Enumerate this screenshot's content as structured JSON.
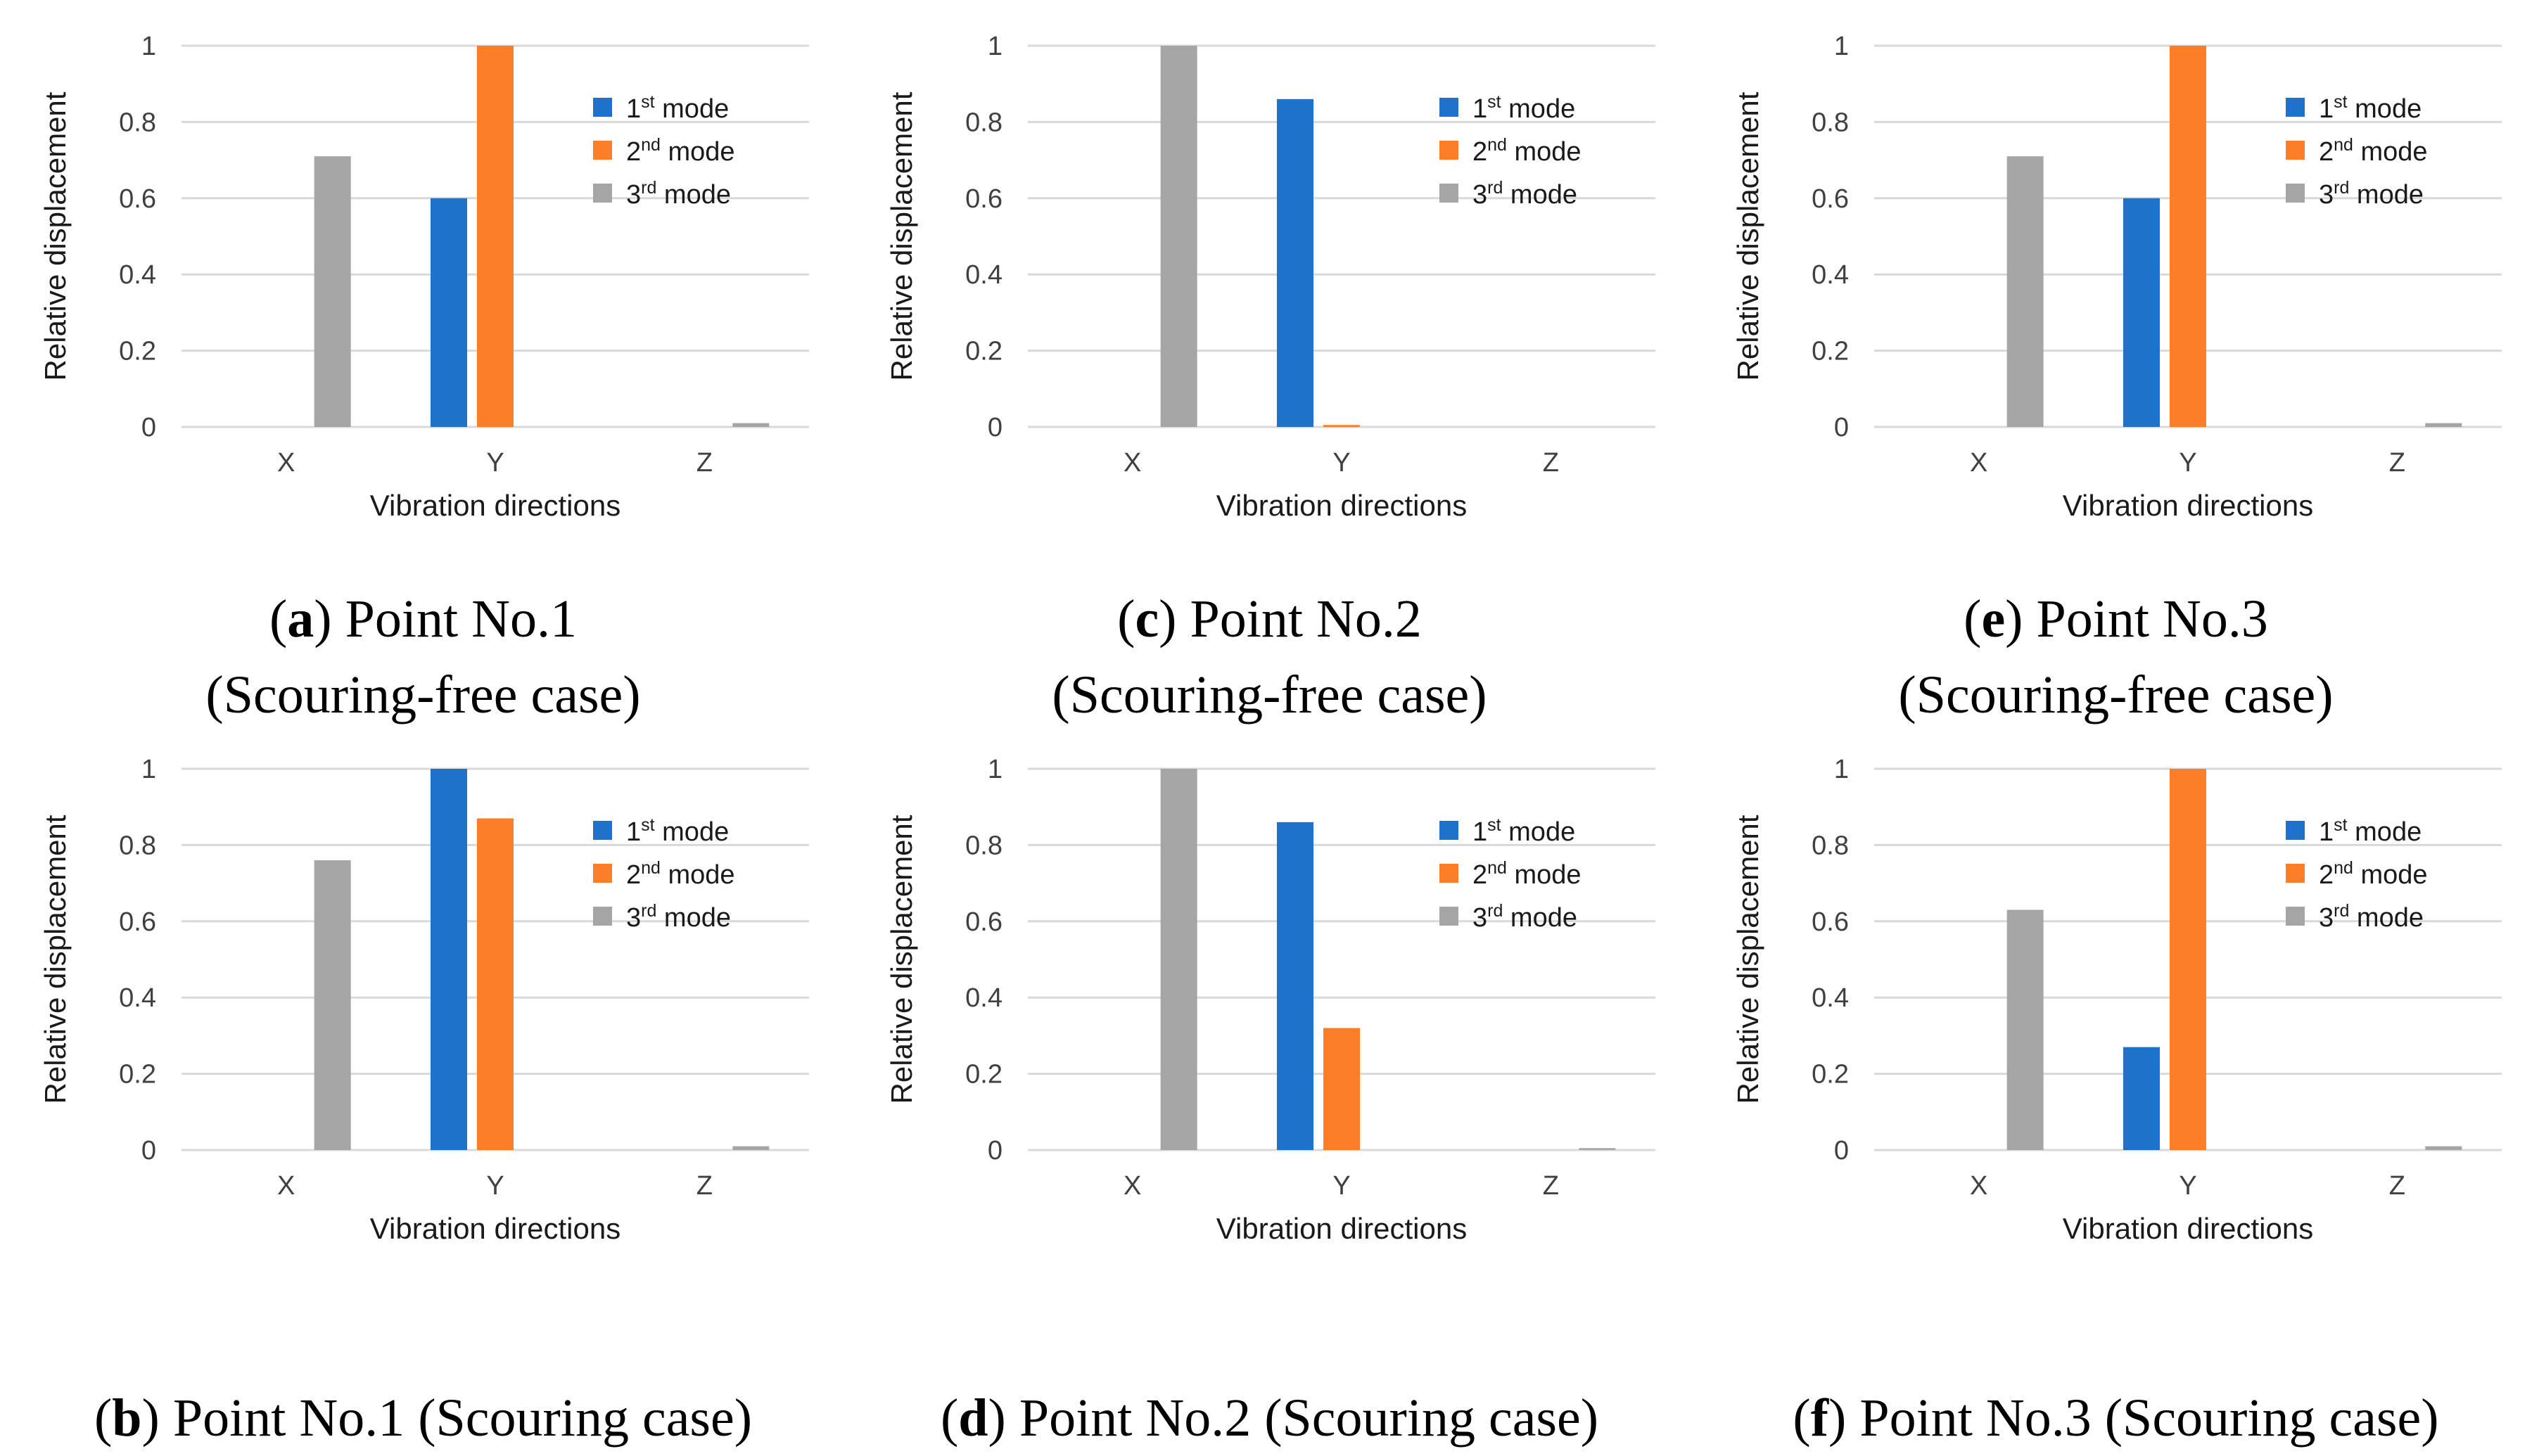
{
  "colors": {
    "mode1": "#1f72c9",
    "mode2": "#fd7e28",
    "mode3": "#a5a5a5",
    "gridline": "#d9d9d9",
    "axis_text": "#404040"
  },
  "panels": [
    {
      "caption": {
        "letter": "a",
        "line1_rest": ") Point No.1",
        "line2": "(Scouring-free case)"
      },
      "chart_data": {
        "type": "bar",
        "categories": [
          "X",
          "Y",
          "Z"
        ],
        "series": [
          {
            "name": "mode",
            "superscript": "st",
            "number": "1",
            "values": [
              0,
              0.6,
              0
            ]
          },
          {
            "name": "mode",
            "superscript": "nd",
            "number": "2",
            "values": [
              0,
              1.0,
              0
            ]
          },
          {
            "name": "mode",
            "superscript": "rd",
            "number": "3",
            "values": [
              0.71,
              0,
              0.01
            ]
          }
        ],
        "xlabel": "Vibration directions",
        "ylabel": "Relative displacement",
        "ylim": [
          0,
          1
        ],
        "yticks": [
          "0",
          "0.2",
          "0.4",
          "0.6",
          "0.8",
          "1"
        ],
        "grid": true,
        "legend": "top-right"
      }
    },
    {
      "caption": {
        "letter": "c",
        "line1_rest": ") Point No.2",
        "line2": "(Scouring-free case)"
      },
      "chart_data": {
        "type": "bar",
        "categories": [
          "X",
          "Y",
          "Z"
        ],
        "series": [
          {
            "name": "mode",
            "superscript": "st",
            "number": "1",
            "values": [
              0,
              0.86,
              0
            ]
          },
          {
            "name": "mode",
            "superscript": "nd",
            "number": "2",
            "values": [
              0,
              0.005,
              0
            ]
          },
          {
            "name": "mode",
            "superscript": "rd",
            "number": "3",
            "values": [
              1.0,
              0,
              0
            ]
          }
        ],
        "xlabel": "Vibration directions",
        "ylabel": "Relative displacement",
        "ylim": [
          0,
          1
        ],
        "yticks": [
          "0",
          "0.2",
          "0.4",
          "0.6",
          "0.8",
          "1"
        ],
        "grid": true,
        "legend": "top-right"
      }
    },
    {
      "caption": {
        "letter": "e",
        "line1_rest": ") Point No.3",
        "line2": "(Scouring-free case)"
      },
      "chart_data": {
        "type": "bar",
        "categories": [
          "X",
          "Y",
          "Z"
        ],
        "series": [
          {
            "name": "mode",
            "superscript": "st",
            "number": "1",
            "values": [
              0,
              0.6,
              0
            ]
          },
          {
            "name": "mode",
            "superscript": "nd",
            "number": "2",
            "values": [
              0,
              1.0,
              0
            ]
          },
          {
            "name": "mode",
            "superscript": "rd",
            "number": "3",
            "values": [
              0.71,
              0,
              0.01
            ]
          }
        ],
        "xlabel": "Vibration directions",
        "ylabel": "Relative displacement",
        "ylim": [
          0,
          1
        ],
        "yticks": [
          "0",
          "0.2",
          "0.4",
          "0.6",
          "0.8",
          "1"
        ],
        "grid": true,
        "legend": "top-right"
      }
    },
    {
      "caption": {
        "letter": "b",
        "line1_rest": ") Point No.1 (Scouring case)",
        "line2": ""
      },
      "chart_data": {
        "type": "bar",
        "categories": [
          "X",
          "Y",
          "Z"
        ],
        "series": [
          {
            "name": "mode",
            "superscript": "st",
            "number": "1",
            "values": [
              0,
              1.0,
              0
            ]
          },
          {
            "name": "mode",
            "superscript": "nd",
            "number": "2",
            "values": [
              0,
              0.87,
              0
            ]
          },
          {
            "name": "mode",
            "superscript": "rd",
            "number": "3",
            "values": [
              0.76,
              0,
              0.01
            ]
          }
        ],
        "xlabel": "Vibration directions",
        "ylabel": "Relative displacement",
        "ylim": [
          0,
          1
        ],
        "yticks": [
          "0",
          "0.2",
          "0.4",
          "0.6",
          "0.8",
          "1"
        ],
        "grid": true,
        "legend": "top-right"
      }
    },
    {
      "caption": {
        "letter": "d",
        "line1_rest": ") Point No.2 (Scouring case)",
        "line2": ""
      },
      "chart_data": {
        "type": "bar",
        "categories": [
          "X",
          "Y",
          "Z"
        ],
        "series": [
          {
            "name": "mode",
            "superscript": "st",
            "number": "1",
            "values": [
              0,
              0.86,
              0
            ]
          },
          {
            "name": "mode",
            "superscript": "nd",
            "number": "2",
            "values": [
              0,
              0.32,
              0
            ]
          },
          {
            "name": "mode",
            "superscript": "rd",
            "number": "3",
            "values": [
              1.0,
              0,
              0.005
            ]
          }
        ],
        "xlabel": "Vibration directions",
        "ylabel": "Relative displacement",
        "ylim": [
          0,
          1
        ],
        "yticks": [
          "0",
          "0.2",
          "0.4",
          "0.6",
          "0.8",
          "1"
        ],
        "grid": true,
        "legend": "top-right"
      }
    },
    {
      "caption": {
        "letter": "f",
        "line1_rest": ") Point No.3 (Scouring case)",
        "line2": ""
      },
      "chart_data": {
        "type": "bar",
        "categories": [
          "X",
          "Y",
          "Z"
        ],
        "series": [
          {
            "name": "mode",
            "superscript": "st",
            "number": "1",
            "values": [
              0,
              0.27,
              0
            ]
          },
          {
            "name": "mode",
            "superscript": "nd",
            "number": "2",
            "values": [
              0,
              1.0,
              0
            ]
          },
          {
            "name": "mode",
            "superscript": "rd",
            "number": "3",
            "values": [
              0.63,
              0,
              0.01
            ]
          }
        ],
        "xlabel": "Vibration directions",
        "ylabel": "Relative displacement",
        "ylim": [
          0,
          1
        ],
        "yticks": [
          "0",
          "0.2",
          "0.4",
          "0.6",
          "0.8",
          "1"
        ],
        "grid": true,
        "legend": "top-right"
      }
    }
  ]
}
